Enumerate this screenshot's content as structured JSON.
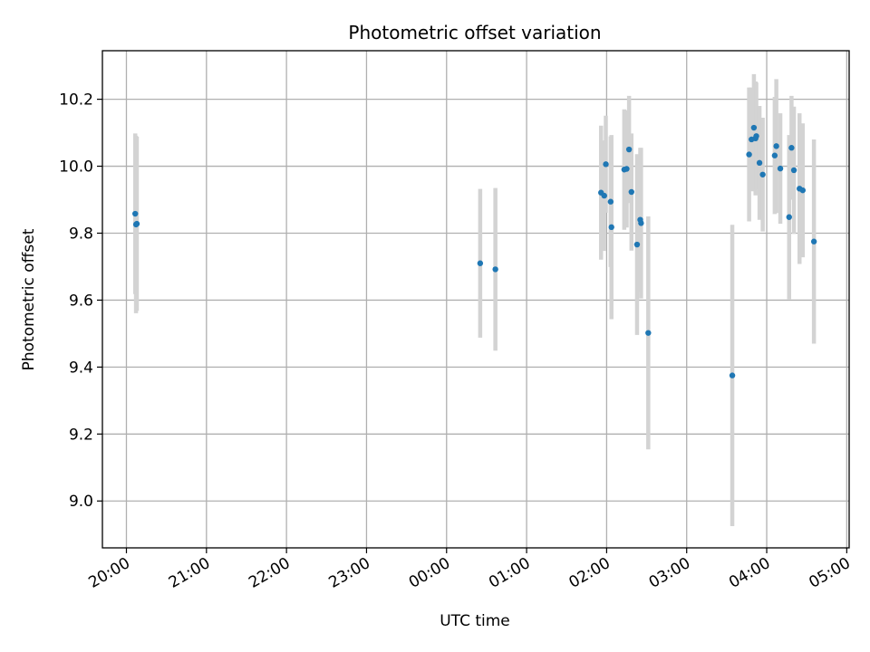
{
  "chart_data": {
    "type": "scatter",
    "title": "Photometric offset variation",
    "xlabel": "UTC time",
    "ylabel": "Photometric offset",
    "x_unit": "hours since 20:00 UTC",
    "xlim": [
      -0.3,
      9.03
    ],
    "ylim": [
      8.86,
      10.345
    ],
    "xticks": [
      {
        "value": 0,
        "label": "20:00"
      },
      {
        "value": 1,
        "label": "21:00"
      },
      {
        "value": 2,
        "label": "22:00"
      },
      {
        "value": 3,
        "label": "23:00"
      },
      {
        "value": 4,
        "label": "00:00"
      },
      {
        "value": 5,
        "label": "01:00"
      },
      {
        "value": 6,
        "label": "02:00"
      },
      {
        "value": 7,
        "label": "03:00"
      },
      {
        "value": 8,
        "label": "04:00"
      },
      {
        "value": 9,
        "label": "05:00"
      }
    ],
    "yticks": [
      {
        "value": 9.0,
        "label": "9.0"
      },
      {
        "value": 9.2,
        "label": "9.2"
      },
      {
        "value": 9.4,
        "label": "9.4"
      },
      {
        "value": 9.6,
        "label": "9.6"
      },
      {
        "value": 9.8,
        "label": "9.8"
      },
      {
        "value": 10.0,
        "label": "10.0"
      },
      {
        "value": 10.2,
        "label": "10.2"
      }
    ],
    "grid": true,
    "colors": {
      "point": "#1f77b4",
      "errorbar": "#d3d3d3",
      "grid": "#b0b0b0"
    },
    "points": [
      {
        "x": 0.11,
        "y": 9.858,
        "err": 0.24
      },
      {
        "x": 0.12,
        "y": 9.826,
        "err": 0.265
      },
      {
        "x": 0.13,
        "y": 9.828,
        "err": 0.26
      },
      {
        "x": 4.42,
        "y": 9.71,
        "err": 0.222
      },
      {
        "x": 4.61,
        "y": 9.692,
        "err": 0.243
      },
      {
        "x": 5.93,
        "y": 9.921,
        "err": 0.2
      },
      {
        "x": 5.97,
        "y": 9.912,
        "err": 0.165
      },
      {
        "x": 5.99,
        "y": 10.006,
        "err": 0.145
      },
      {
        "x": 6.05,
        "y": 9.894,
        "err": 0.195
      },
      {
        "x": 6.06,
        "y": 9.818,
        "err": 0.275
      },
      {
        "x": 6.22,
        "y": 9.99,
        "err": 0.18
      },
      {
        "x": 6.25,
        "y": 9.992,
        "err": 0.175
      },
      {
        "x": 6.28,
        "y": 10.05,
        "err": 0.16
      },
      {
        "x": 6.31,
        "y": 9.923,
        "err": 0.175
      },
      {
        "x": 6.38,
        "y": 9.766,
        "err": 0.27
      },
      {
        "x": 6.42,
        "y": 9.84,
        "err": 0.215
      },
      {
        "x": 6.43,
        "y": 9.83,
        "err": 0.225
      },
      {
        "x": 6.52,
        "y": 9.502,
        "err": 0.348
      },
      {
        "x": 7.57,
        "y": 9.375,
        "err": 0.45
      },
      {
        "x": 7.78,
        "y": 10.035,
        "err": 0.2
      },
      {
        "x": 7.81,
        "y": 10.08,
        "err": 0.155
      },
      {
        "x": 7.84,
        "y": 10.115,
        "err": 0.16
      },
      {
        "x": 7.86,
        "y": 10.083,
        "err": 0.17
      },
      {
        "x": 7.87,
        "y": 10.09,
        "err": 0.16
      },
      {
        "x": 7.91,
        "y": 10.01,
        "err": 0.17
      },
      {
        "x": 7.95,
        "y": 9.975,
        "err": 0.17
      },
      {
        "x": 8.1,
        "y": 10.032,
        "err": 0.175
      },
      {
        "x": 8.12,
        "y": 10.06,
        "err": 0.2
      },
      {
        "x": 8.17,
        "y": 9.993,
        "err": 0.165
      },
      {
        "x": 8.28,
        "y": 9.848,
        "err": 0.245
      },
      {
        "x": 8.31,
        "y": 10.055,
        "err": 0.155
      },
      {
        "x": 8.34,
        "y": 9.988,
        "err": 0.19
      },
      {
        "x": 8.41,
        "y": 9.933,
        "err": 0.225
      },
      {
        "x": 8.45,
        "y": 9.928,
        "err": 0.2
      },
      {
        "x": 8.59,
        "y": 9.775,
        "err": 0.305
      }
    ]
  }
}
